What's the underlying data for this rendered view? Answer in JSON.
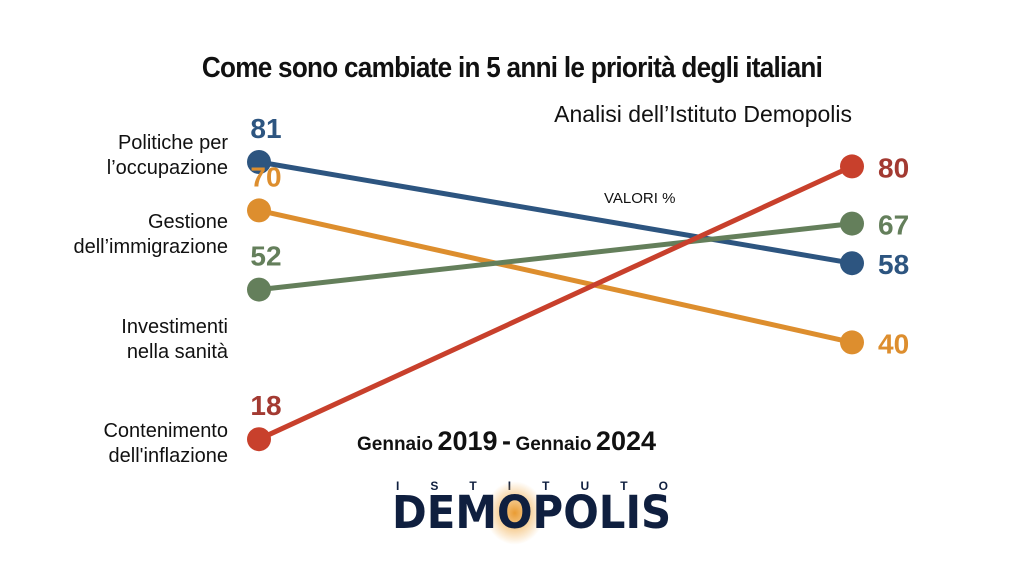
{
  "chart_data": {
    "type": "line",
    "title": "Come sono cambiate in 5 anni le priorità degli italiani",
    "subtitle": "Analisi dell’Istituto Demopolis",
    "unit_label": "VALORI %",
    "x": [
      "Gennaio 2019",
      "Gennaio 2024"
    ],
    "period": {
      "from_word": "Gennaio",
      "from_year": "2019",
      "sep": "-",
      "to_word": "Gennaio",
      "to_year": "2024"
    },
    "series": [
      {
        "name": "Politiche per l’occupazione",
        "lines": [
          "Politiche per",
          "l’occupazione"
        ],
        "values": [
          81,
          58
        ],
        "color": "#2d5580"
      },
      {
        "name": "Gestione dell’immigrazione",
        "lines": [
          "Gestione",
          "dell’immigrazione"
        ],
        "values": [
          70,
          40
        ],
        "color": "#dd8e2e"
      },
      {
        "name": "Investimenti nella sanità",
        "lines": [
          "Investimenti",
          "nella sanità"
        ],
        "values": [
          52,
          67
        ],
        "color": "#647f5b"
      },
      {
        "name": "Contenimento dell'inflazione",
        "lines": [
          "Contenimento",
          "dell'inflazione"
        ],
        "values": [
          18,
          80
        ],
        "color": "#c8402c"
      }
    ],
    "label_colors_left": [
      "#2d5580",
      "#dd8e2e",
      "#647f5b",
      "#a33a32"
    ],
    "label_colors_right": [
      "#2d5580",
      "#dd8e2e",
      "#647f5b",
      "#a33a32"
    ]
  },
  "logo": {
    "top_letters": [
      "I",
      "S",
      "T",
      "I",
      "T",
      "U",
      "T",
      "O"
    ],
    "pre": "DEM",
    "o": "O",
    "post": "POLIS"
  }
}
